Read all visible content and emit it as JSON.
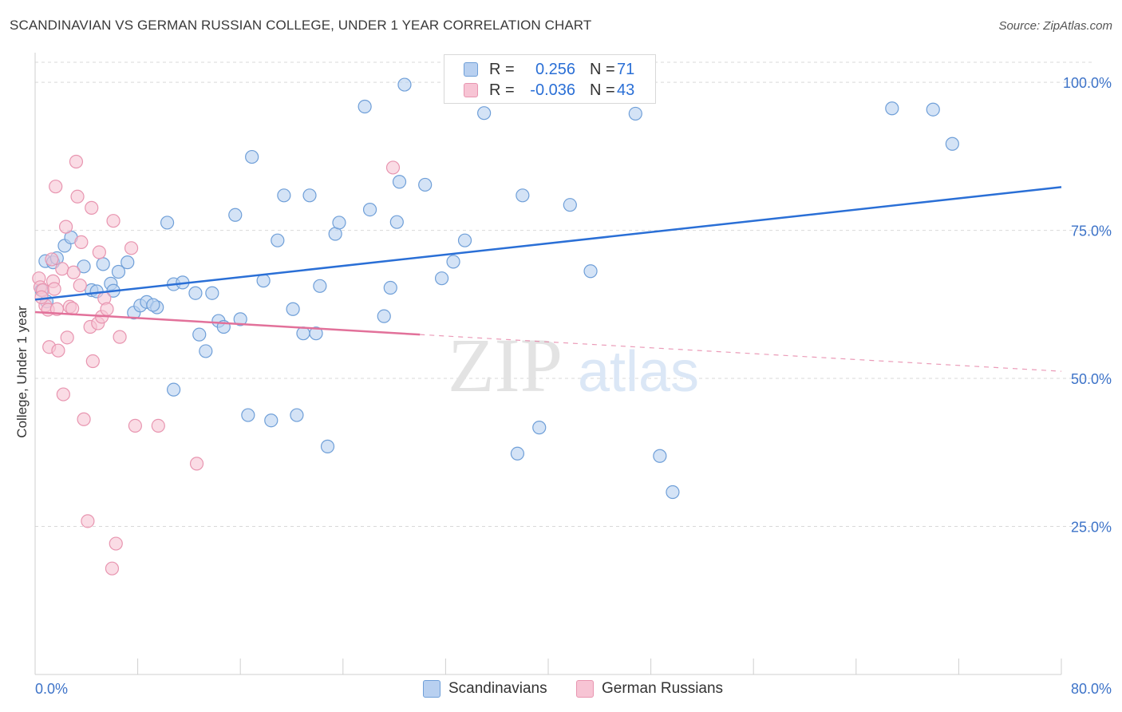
{
  "title": "SCANDINAVIAN VS GERMAN RUSSIAN COLLEGE, UNDER 1 YEAR CORRELATION CHART",
  "source": "Source: ZipAtlas.com",
  "watermark": {
    "zip": "ZIP",
    "atlas": "atlas"
  },
  "legend": {
    "rows": [
      {
        "r_label": "R =",
        "r_value": "0.256",
        "n_label": "N =",
        "n_value": "71"
      },
      {
        "r_label": "R =",
        "r_value": "-0.036",
        "n_label": "N =",
        "n_value": "43"
      }
    ]
  },
  "colors": {
    "blue_fill": "#b8d0f0",
    "blue_stroke": "#6f9fd8",
    "blue_line": "#2a6fd6",
    "pink_fill": "#f7c4d4",
    "pink_stroke": "#e895b0",
    "pink_line": "#e2719a",
    "tick_text": "#3d73c8",
    "grid": "#d9d9d9"
  },
  "chart_data": {
    "type": "scatter",
    "title": "SCANDINAVIAN VS GERMAN RUSSIAN COLLEGE, UNDER 1 YEAR CORRELATION CHART",
    "xlabel": "",
    "ylabel": "College, Under 1 year",
    "xlim": [
      0,
      80
    ],
    "ylim": [
      0,
      105
    ],
    "x_tick_labels": [
      "0.0%",
      "80.0%"
    ],
    "y_tick_labels": [
      "100.0%",
      "75.0%",
      "50.0%",
      "25.0%"
    ],
    "y_ticks": [
      100,
      75,
      50,
      25
    ],
    "grid": "horizontal dashed",
    "legend_position": "bottom-center",
    "series": [
      {
        "name": "Scandinavians",
        "r": 0.256,
        "n": 71,
        "trend": {
          "x": [
            0,
            80
          ],
          "y": [
            63.3,
            82.3
          ],
          "style": "solid"
        },
        "points": [
          [
            0.8,
            69.8
          ],
          [
            1.4,
            69.6
          ],
          [
            1.7,
            70.3
          ],
          [
            2.3,
            72.4
          ],
          [
            2.8,
            73.8
          ],
          [
            3.8,
            68.9
          ],
          [
            4.4,
            64.9
          ],
          [
            4.8,
            64.7
          ],
          [
            5.3,
            69.3
          ],
          [
            5.9,
            66.0
          ],
          [
            6.5,
            68.0
          ],
          [
            7.2,
            69.6
          ],
          [
            7.7,
            61.1
          ],
          [
            8.2,
            62.3
          ],
          [
            8.7,
            62.9
          ],
          [
            9.5,
            62.0
          ],
          [
            10.3,
            76.3
          ],
          [
            10.8,
            65.9
          ],
          [
            11.5,
            66.2
          ],
          [
            12.5,
            64.4
          ],
          [
            12.8,
            57.4
          ],
          [
            13.3,
            54.6
          ],
          [
            13.8,
            64.4
          ],
          [
            14.3,
            59.7
          ],
          [
            14.7,
            58.7
          ],
          [
            15.6,
            77.6
          ],
          [
            16.0,
            60.0
          ],
          [
            16.6,
            43.8
          ],
          [
            16.9,
            87.4
          ],
          [
            17.8,
            66.5
          ],
          [
            18.4,
            42.9
          ],
          [
            18.9,
            73.3
          ],
          [
            19.4,
            80.9
          ],
          [
            20.1,
            61.7
          ],
          [
            20.4,
            43.8
          ],
          [
            20.9,
            57.6
          ],
          [
            21.4,
            80.9
          ],
          [
            21.9,
            57.6
          ],
          [
            22.2,
            65.6
          ],
          [
            22.8,
            38.5
          ],
          [
            23.4,
            74.4
          ],
          [
            23.7,
            76.3
          ],
          [
            25.7,
            95.9
          ],
          [
            26.1,
            78.5
          ],
          [
            27.2,
            60.5
          ],
          [
            27.7,
            65.3
          ],
          [
            28.2,
            76.4
          ],
          [
            28.4,
            83.2
          ],
          [
            28.8,
            99.6
          ],
          [
            30.4,
            82.7
          ],
          [
            31.7,
            66.9
          ],
          [
            32.6,
            69.7
          ],
          [
            33.5,
            73.3
          ],
          [
            35.0,
            94.8
          ],
          [
            37.6,
            37.3
          ],
          [
            38.0,
            80.9
          ],
          [
            39.3,
            41.7
          ],
          [
            41.7,
            79.3
          ],
          [
            43.3,
            68.1
          ],
          [
            45.3,
            99.6
          ],
          [
            46.8,
            94.7
          ],
          [
            48.7,
            36.9
          ],
          [
            49.7,
            30.8
          ],
          [
            66.8,
            95.6
          ],
          [
            70.0,
            95.4
          ],
          [
            71.5,
            89.6
          ],
          [
            10.8,
            48.1
          ],
          [
            0.5,
            64.9
          ],
          [
            0.9,
            63.0
          ],
          [
            9.2,
            62.4
          ],
          [
            6.1,
            64.8
          ]
        ]
      },
      {
        "name": "German Russians",
        "r": -0.036,
        "n": 43,
        "trend": {
          "x": [
            0,
            30
          ],
          "y": [
            61.2,
            57.4
          ],
          "style": "solid",
          "extension": {
            "x": [
              30,
              80
            ],
            "y": [
              57.4,
              51.2
            ],
            "style": "dashed"
          }
        },
        "points": [
          [
            0.3,
            66.9
          ],
          [
            0.4,
            65.4
          ],
          [
            0.6,
            64.9
          ],
          [
            0.8,
            62.3
          ],
          [
            1.0,
            61.6
          ],
          [
            1.1,
            55.3
          ],
          [
            1.3,
            70.1
          ],
          [
            1.4,
            66.4
          ],
          [
            1.5,
            65.1
          ],
          [
            1.6,
            82.4
          ],
          [
            1.7,
            61.7
          ],
          [
            1.8,
            54.7
          ],
          [
            2.1,
            68.5
          ],
          [
            2.2,
            47.3
          ],
          [
            2.4,
            75.6
          ],
          [
            2.5,
            56.9
          ],
          [
            2.7,
            62.1
          ],
          [
            2.9,
            61.8
          ],
          [
            3.0,
            67.9
          ],
          [
            3.2,
            86.6
          ],
          [
            3.3,
            80.7
          ],
          [
            3.5,
            65.7
          ],
          [
            3.6,
            73.0
          ],
          [
            3.8,
            43.1
          ],
          [
            4.1,
            25.9
          ],
          [
            4.3,
            58.7
          ],
          [
            4.4,
            78.8
          ],
          [
            4.5,
            52.9
          ],
          [
            4.9,
            59.3
          ],
          [
            5.0,
            71.3
          ],
          [
            5.2,
            60.4
          ],
          [
            5.4,
            63.5
          ],
          [
            5.6,
            61.7
          ],
          [
            6.0,
            17.9
          ],
          [
            6.1,
            76.6
          ],
          [
            6.3,
            22.1
          ],
          [
            6.6,
            57.0
          ],
          [
            7.5,
            72.0
          ],
          [
            7.8,
            42.0
          ],
          [
            9.6,
            42.0
          ],
          [
            12.6,
            35.6
          ],
          [
            27.9,
            85.6
          ],
          [
            0.5,
            63.7
          ]
        ]
      }
    ]
  }
}
